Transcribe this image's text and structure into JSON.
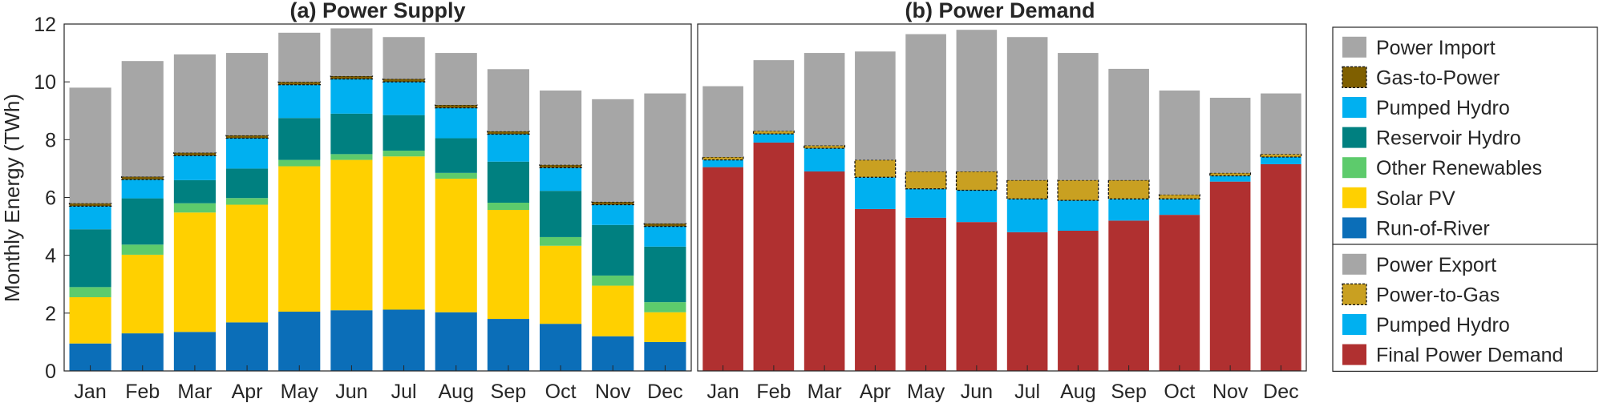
{
  "colors": {
    "power_import": "#a6a6a6",
    "gas_to_power": "#7f5f00",
    "pumped_hydro": "#00b0f0",
    "reservoir_hydro": "#008080",
    "other_renewables": "#5dcb6c",
    "solar_pv": "#ffd000",
    "run_of_river": "#0b6eb8",
    "power_export": "#a6a6a6",
    "power_to_gas": "#c9a021",
    "final_power_demand": "#b03030"
  },
  "chart_data": [
    {
      "type": "bar",
      "stacked": true,
      "title": "(a) Power Supply",
      "ylabel": "Monthly Energy (TWh)",
      "xlabel": "",
      "ylim": [
        0,
        12
      ],
      "yticks": [
        0,
        2,
        4,
        6,
        8,
        10,
        12
      ],
      "grid": false,
      "categories": [
        "Jan",
        "Feb",
        "Mar",
        "Apr",
        "May",
        "Jun",
        "Jul",
        "Aug",
        "Sep",
        "Oct",
        "Nov",
        "Dec"
      ],
      "series": [
        {
          "name": "Run-of-River",
          "color_key": "run_of_river",
          "dashed": false,
          "values": [
            0.95,
            1.3,
            1.35,
            1.68,
            2.05,
            2.1,
            2.12,
            2.03,
            1.8,
            1.63,
            1.2,
            1.0
          ]
        },
        {
          "name": "Solar PV",
          "color_key": "solar_pv",
          "dashed": false,
          "values": [
            1.6,
            2.72,
            4.13,
            4.07,
            5.03,
            5.2,
            5.3,
            4.62,
            3.77,
            2.7,
            1.75,
            1.03
          ]
        },
        {
          "name": "Other Renewables",
          "color_key": "other_renewables",
          "dashed": false,
          "values": [
            0.35,
            0.35,
            0.32,
            0.23,
            0.22,
            0.2,
            0.2,
            0.2,
            0.25,
            0.3,
            0.35,
            0.35
          ]
        },
        {
          "name": "Reservoir Hydro",
          "color_key": "reservoir_hydro",
          "dashed": false,
          "values": [
            2.0,
            1.6,
            0.8,
            1.02,
            1.45,
            1.4,
            1.23,
            1.2,
            1.42,
            1.6,
            1.75,
            1.92
          ]
        },
        {
          "name": "Pumped Hydro",
          "color_key": "pumped_hydro",
          "dashed": false,
          "values": [
            0.8,
            0.65,
            0.85,
            1.05,
            1.15,
            1.2,
            1.15,
            1.05,
            0.95,
            0.8,
            0.7,
            0.7
          ]
        },
        {
          "name": "Gas-to-Power",
          "color_key": "gas_to_power",
          "dashed": true,
          "values": [
            0.1,
            0.1,
            0.1,
            0.1,
            0.1,
            0.1,
            0.1,
            0.1,
            0.1,
            0.1,
            0.1,
            0.1
          ]
        },
        {
          "name": "Power Import",
          "color_key": "power_import",
          "dashed": false,
          "values": [
            4.0,
            4.0,
            3.4,
            2.85,
            1.7,
            1.65,
            1.45,
            1.8,
            2.15,
            2.57,
            3.55,
            4.5
          ]
        }
      ],
      "legend": {
        "location": "outside-right",
        "entries": [
          "Power Import",
          "Gas-to-Power",
          "Pumped Hydro",
          "Reservoir Hydro",
          "Other Renewables",
          "Solar PV",
          "Run-of-River"
        ]
      }
    },
    {
      "type": "bar",
      "stacked": true,
      "title": "(b) Power Demand",
      "ylabel": "",
      "xlabel": "",
      "ylim": [
        0,
        12
      ],
      "yticks": [],
      "grid": false,
      "categories": [
        "Jan",
        "Feb",
        "Mar",
        "Apr",
        "May",
        "Jun",
        "Jul",
        "Aug",
        "Sep",
        "Oct",
        "Nov",
        "Dec"
      ],
      "series": [
        {
          "name": "Final Power Demand",
          "color_key": "final_power_demand",
          "dashed": false,
          "values": [
            7.05,
            7.9,
            6.9,
            5.6,
            5.3,
            5.15,
            4.8,
            4.85,
            5.2,
            5.4,
            6.55,
            7.15
          ]
        },
        {
          "name": "Pumped Hydro",
          "color_key": "pumped_hydro",
          "dashed": false,
          "values": [
            0.25,
            0.3,
            0.8,
            1.1,
            1.0,
            1.1,
            1.15,
            1.05,
            0.75,
            0.55,
            0.2,
            0.25
          ]
        },
        {
          "name": "Power-to-Gas",
          "color_key": "power_to_gas",
          "dashed": true,
          "values": [
            0.1,
            0.1,
            0.1,
            0.6,
            0.6,
            0.65,
            0.65,
            0.7,
            0.65,
            0.15,
            0.1,
            0.1
          ]
        },
        {
          "name": "Power Export",
          "color_key": "power_export",
          "dashed": false,
          "values": [
            2.45,
            2.45,
            3.2,
            3.75,
            4.75,
            4.9,
            4.95,
            4.4,
            3.85,
            3.6,
            2.6,
            2.1
          ]
        }
      ],
      "legend": {
        "location": "outside-right",
        "entries": [
          "Power Export",
          "Power-to-Gas",
          "Pumped Hydro",
          "Final Power Demand"
        ]
      }
    }
  ]
}
